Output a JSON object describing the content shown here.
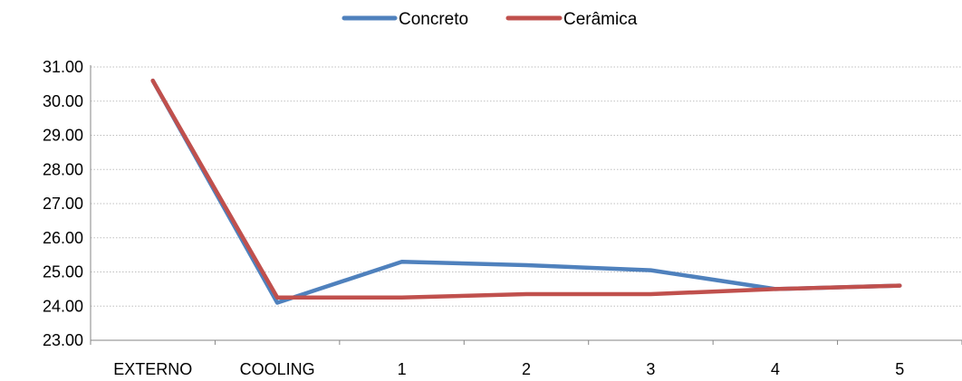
{
  "chart_data": {
    "type": "line",
    "title": "",
    "xlabel": "",
    "ylabel": "",
    "categories": [
      "EXTERNO",
      "COOLING",
      "1",
      "2",
      "3",
      "4",
      "5"
    ],
    "ylim": [
      23.0,
      31.0
    ],
    "yticks": [
      "23.00",
      "24.00",
      "25.00",
      "26.00",
      "27.00",
      "28.00",
      "29.00",
      "30.00",
      "31.00"
    ],
    "grid": "horizontal dotted",
    "legend_position": "top-center",
    "series": [
      {
        "name": "Concreto",
        "color": "#4F81BD",
        "values": [
          30.6,
          24.1,
          25.3,
          25.2,
          25.05,
          24.5,
          24.6
        ]
      },
      {
        "name": "Cerâmica",
        "color": "#C0504D",
        "values": [
          30.6,
          24.25,
          24.25,
          24.35,
          24.35,
          24.5,
          24.6
        ]
      }
    ]
  }
}
